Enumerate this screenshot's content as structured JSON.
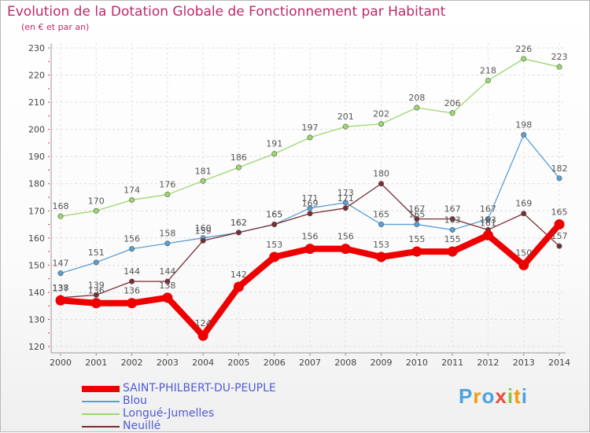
{
  "title": "Evolution de la Dotation Globale de Fonctionnement par Habitant",
  "subtitle": "(en € et par an)",
  "logo": {
    "letters": [
      "P",
      "r",
      "o",
      "x",
      "i",
      "t",
      "i"
    ],
    "colors": [
      "#4aa3df",
      "#f39c12",
      "#4aa3df",
      "#e74c3c",
      "#8bc34a",
      "#f39c12",
      "#4aa3df"
    ]
  },
  "chart_data": {
    "type": "line",
    "title": "Evolution de la Dotation Globale de Fonctionnement par Habitant",
    "ylabel": "(en € et par an)",
    "xlabel": "",
    "ylim": [
      120,
      230
    ],
    "yticks": [
      120,
      130,
      140,
      150,
      160,
      170,
      180,
      190,
      200,
      210,
      220,
      230
    ],
    "categories": [
      "2000",
      "2001",
      "2002",
      "2003",
      "2004",
      "2005",
      "2006",
      "2007",
      "2008",
      "2009",
      "2010",
      "2011",
      "2012",
      "2013",
      "2014"
    ],
    "grid": true,
    "legend_position": "bottom-left",
    "series": [
      {
        "name": "Longué-Jumelles",
        "color": "#9bd86e",
        "values": [
          168,
          170,
          174,
          176,
          181,
          186,
          191,
          197,
          201,
          202,
          208,
          206,
          218,
          226,
          223
        ],
        "labels": [
          "168",
          "170",
          "174",
          "176",
          "181",
          "186",
          "191",
          "197",
          "201",
          "202",
          "208",
          "206",
          "218",
          "226",
          "223"
        ]
      },
      {
        "name": "Blou",
        "color": "#5a9fd4",
        "values": [
          147,
          151,
          156,
          158,
          160,
          162,
          165,
          171,
          173,
          165,
          165,
          163,
          167,
          198,
          182
        ],
        "labels": [
          "147",
          "151",
          "156",
          "158",
          "160",
          "162",
          "165",
          "171",
          "173",
          "165",
          "165",
          "163",
          "167",
          "198",
          "182"
        ]
      },
      {
        "name": "Neuillé",
        "color": "#7a2d35",
        "values": [
          138,
          139,
          144,
          144,
          159,
          162,
          165,
          169,
          171,
          180,
          167,
          167,
          163,
          169,
          157
        ],
        "labels": [
          "138",
          "139",
          "144",
          "144",
          "159",
          "162",
          "165",
          "169",
          "171",
          "180",
          "167",
          "167",
          "163",
          "169",
          "157"
        ]
      },
      {
        "name": "SAINT-PHILBERT-DU-PEUPLE",
        "color": "#ee0000",
        "values": [
          137,
          136,
          136,
          138,
          124,
          142,
          153,
          156,
          156,
          153,
          155,
          155,
          161,
          150,
          165
        ],
        "labels": [
          "137",
          "136",
          "136",
          "138",
          "124",
          "142",
          "153",
          "156",
          "156",
          "153",
          "155",
          "155",
          "161",
          "150",
          "165"
        ]
      }
    ],
    "legend": [
      "SAINT-PHILBERT-DU-PEUPLE",
      "Blou",
      "Longué-Jumelles",
      "Neuillé"
    ]
  }
}
